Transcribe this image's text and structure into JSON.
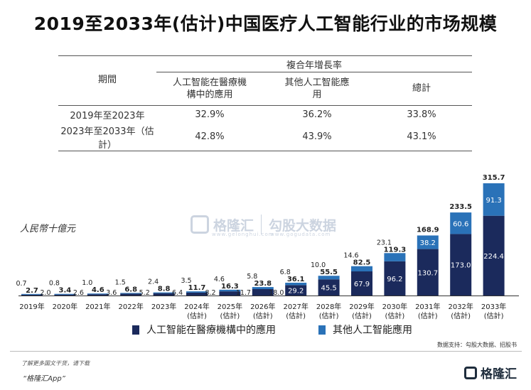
{
  "title": "2019至2033年(估计)中国医疗人工智能行业的市场规模",
  "cagr_table": {
    "group_header": "複合年增長率",
    "period_header": "期間",
    "col_medical": "人工智能在醫療機構中的應用",
    "col_other": "其他人工智能應用",
    "col_total": "總計",
    "rows": [
      {
        "period": "2019年至2023年",
        "medical": "32.9%",
        "other": "36.2%",
        "total": "33.8%"
      },
      {
        "period": "2023年至2033年（估計）",
        "medical": "42.8%",
        "other": "43.9%",
        "total": "43.1%"
      }
    ]
  },
  "unit_label": "人民幣十億元",
  "watermark": {
    "name": "格隆汇",
    "name2": "勾股大数据",
    "url": "www.gelonghui.com",
    "url2": "www.gogudata.com"
  },
  "chart_data": {
    "type": "bar",
    "stacked": true,
    "x": [
      {
        "line1": "2019年",
        "line2": ""
      },
      {
        "line1": "2020年",
        "line2": ""
      },
      {
        "line1": "2021年",
        "line2": ""
      },
      {
        "line1": "2022年",
        "line2": ""
      },
      {
        "line1": "2023年",
        "line2": ""
      },
      {
        "line1": "2024年",
        "line2": "(估計)"
      },
      {
        "line1": "2025年",
        "line2": "(估計)"
      },
      {
        "line1": "2026年",
        "line2": "(估計)"
      },
      {
        "line1": "2027年",
        "line2": "(估計)"
      },
      {
        "line1": "2028年",
        "line2": "(估計)"
      },
      {
        "line1": "2029年",
        "line2": "(估計)"
      },
      {
        "line1": "2030年",
        "line2": "(估計)"
      },
      {
        "line1": "2031年",
        "line2": "(估計)"
      },
      {
        "line1": "2032年",
        "line2": "(估計)"
      },
      {
        "line1": "2033年",
        "line2": "(估計)"
      }
    ],
    "series": [
      {
        "name": "人工智能在醫療機構中的應用",
        "color": "#1b2a5c",
        "values": [
          2.0,
          2.6,
          3.6,
          5.2,
          6.4,
          8.2,
          11.7,
          18.0,
          29.2,
          45.5,
          67.9,
          96.2,
          130.7,
          173.0,
          224.4
        ]
      },
      {
        "name": "其他人工智能應用",
        "color": "#2a72b8",
        "values": [
          0.7,
          0.8,
          1.0,
          1.5,
          2.4,
          3.5,
          4.6,
          5.8,
          6.8,
          10.0,
          14.6,
          23.1,
          38.2,
          60.6,
          91.3
        ]
      }
    ],
    "totals": [
      2.7,
      3.4,
      4.6,
      6.8,
      8.8,
      11.7,
      16.3,
      23.8,
      36.1,
      55.5,
      82.5,
      119.3,
      168.9,
      233.5,
      315.7
    ],
    "ylim": [
      0,
      315.7
    ],
    "legend_position": "bottom"
  },
  "source": "数据支持：勾股大数据、招股书",
  "footer": {
    "note": "了解更多国文干货，请下载",
    "app": "“格隆汇App”",
    "brand": "格隆汇"
  }
}
